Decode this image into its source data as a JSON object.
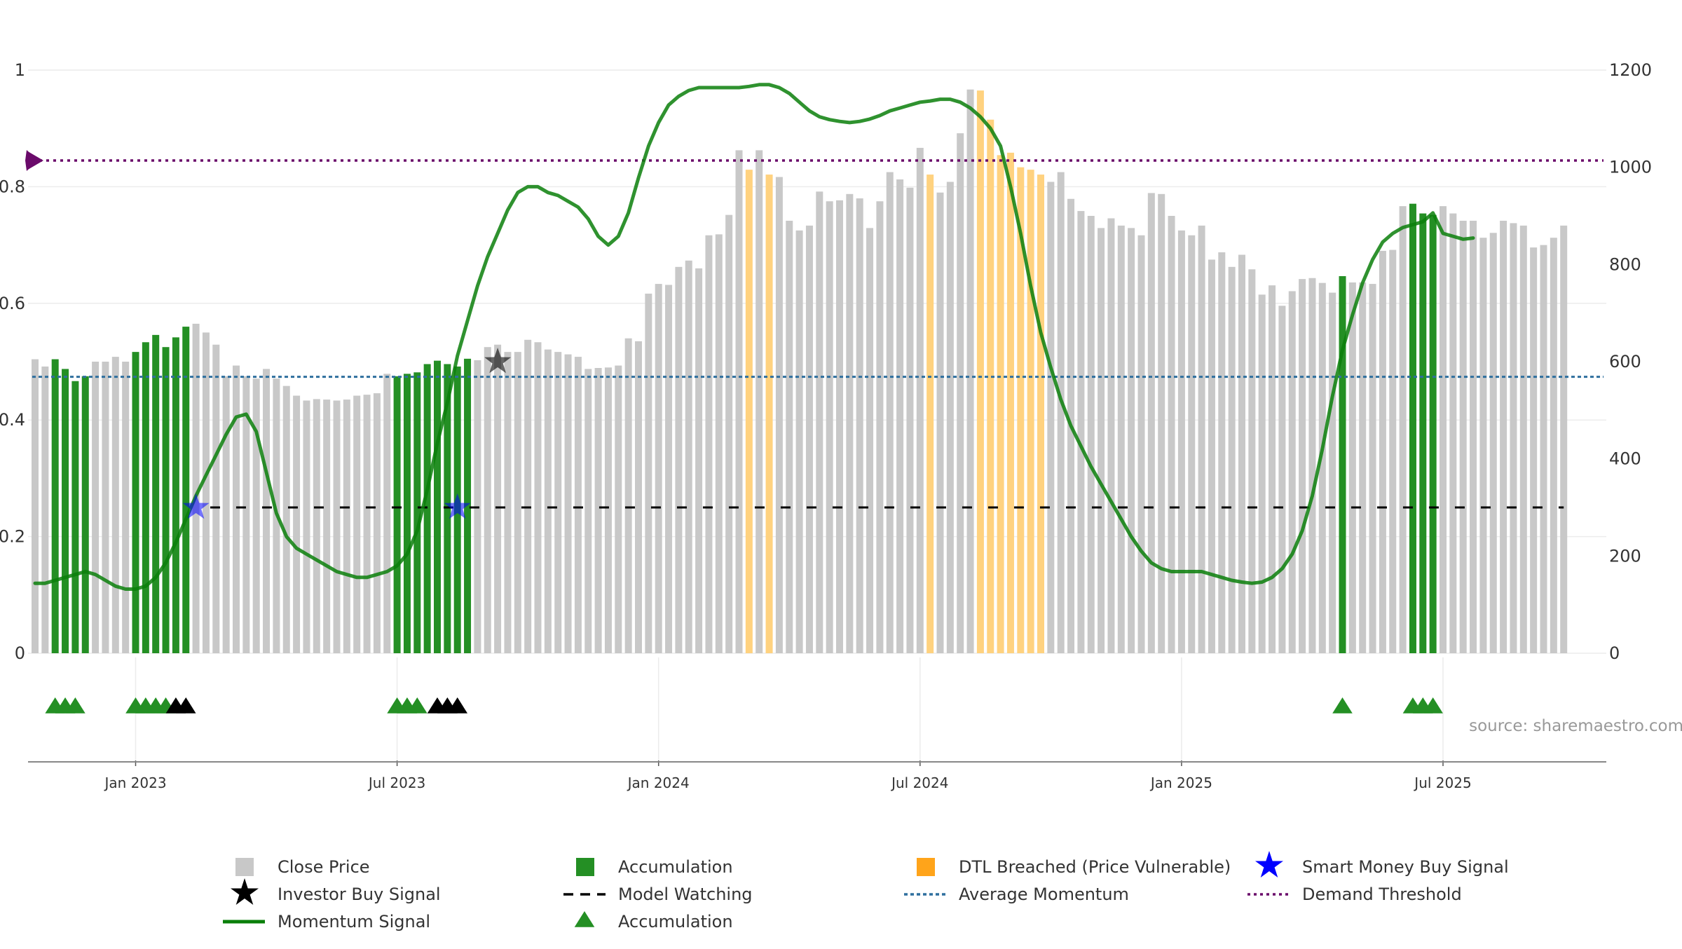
{
  "chart_data": {
    "type": "bar",
    "title": "",
    "source": "source: sharemaestro.com",
    "left_axis": {
      "ticks": [
        "0",
        "0.2",
        "0.4",
        "0.6",
        "0.8",
        "1"
      ],
      "range": [
        0,
        1
      ]
    },
    "right_axis": {
      "ticks": [
        "0",
        "200",
        "400",
        "600",
        "800",
        "1000",
        "1200"
      ],
      "range": [
        0,
        1200
      ]
    },
    "x_axis": {
      "labels": [
        "Jan 2023",
        "Jul 2023",
        "Jan 2024",
        "Jul 2024",
        "Jan 2025",
        "Jul 2025"
      ],
      "label_weeks": [
        10,
        36,
        62,
        88,
        114,
        140
      ]
    },
    "colors": {
      "close_price": "#c8c8c8",
      "accumulation": "#248f24",
      "dtl": "#ffd27f",
      "momentum": "#0a7f0a",
      "demand_threshold": "#6a0a6a",
      "average_momentum": "#2e6f9e",
      "model_watching": "#000000",
      "smart_money": "#0000ff",
      "investor_buy": "#000000"
    },
    "close_prices": [
      605,
      590,
      605,
      585,
      560,
      570,
      600,
      600,
      610,
      600,
      620,
      640,
      655,
      630,
      650,
      672,
      678,
      660,
      635,
      570,
      592,
      570,
      565,
      585,
      565,
      550,
      530,
      520,
      523,
      522,
      520,
      522,
      530,
      532,
      535,
      575,
      570,
      575,
      578,
      595,
      602,
      595,
      590,
      606,
      603,
      630,
      635,
      620,
      620,
      645,
      640,
      625,
      620,
      615,
      610,
      585,
      587,
      588,
      592,
      648,
      642,
      740,
      760,
      758,
      795,
      808,
      792,
      860,
      862,
      902,
      1035,
      995,
      1035,
      985,
      980,
      890,
      870,
      880,
      950,
      930,
      932,
      945,
      936,
      875,
      930,
      990,
      975,
      958,
      1040,
      985,
      948,
      970,
      1070,
      1160,
      1158,
      1098,
      1025,
      1030,
      1000,
      995,
      985,
      970,
      990,
      935,
      910,
      900,
      875,
      895,
      880,
      875,
      860,
      947,
      945,
      900,
      870,
      860,
      880,
      810,
      825,
      795,
      820,
      790,
      738,
      757,
      715,
      745,
      770,
      772,
      762,
      742,
      776,
      763,
      763,
      760,
      828,
      830,
      920,
      925,
      905,
      902,
      920,
      905,
      890,
      890,
      855,
      865,
      890,
      885,
      880,
      835,
      840,
      855,
      880
    ],
    "accumulation_weeks": [
      2,
      3,
      4,
      5,
      10,
      11,
      12,
      13,
      14,
      15,
      36,
      37,
      38,
      39,
      40,
      41,
      42,
      43,
      130,
      137,
      138,
      139
    ],
    "dtl_weeks": [
      71,
      73,
      89,
      94,
      95,
      96,
      97,
      98,
      99,
      100
    ],
    "momentum_signal": [
      0.12,
      0.12,
      0.125,
      0.13,
      0.135,
      0.14,
      0.135,
      0.125,
      0.115,
      0.11,
      0.11,
      0.115,
      0.13,
      0.155,
      0.19,
      0.23,
      0.27,
      0.305,
      0.34,
      0.375,
      0.405,
      0.41,
      0.38,
      0.31,
      0.24,
      0.2,
      0.18,
      0.17,
      0.16,
      0.15,
      0.14,
      0.135,
      0.13,
      0.13,
      0.135,
      0.14,
      0.15,
      0.17,
      0.21,
      0.28,
      0.36,
      0.43,
      0.51,
      0.57,
      0.63,
      0.68,
      0.72,
      0.76,
      0.79,
      0.8,
      0.8,
      0.79,
      0.785,
      0.775,
      0.765,
      0.745,
      0.715,
      0.7,
      0.715,
      0.755,
      0.815,
      0.87,
      0.91,
      0.94,
      0.955,
      0.965,
      0.97,
      0.97,
      0.97,
      0.97,
      0.97,
      0.972,
      0.975,
      0.975,
      0.97,
      0.96,
      0.945,
      0.93,
      0.92,
      0.915,
      0.912,
      0.91,
      0.912,
      0.916,
      0.922,
      0.93,
      0.935,
      0.94,
      0.945,
      0.947,
      0.95,
      0.95,
      0.945,
      0.935,
      0.92,
      0.9,
      0.87,
      0.8,
      0.72,
      0.63,
      0.55,
      0.49,
      0.435,
      0.39,
      0.355,
      0.32,
      0.29,
      0.26,
      0.23,
      0.2,
      0.175,
      0.155,
      0.145,
      0.14,
      0.14,
      0.14,
      0.14,
      0.135,
      0.13,
      0.125,
      0.122,
      0.12,
      0.122,
      0.13,
      0.145,
      0.17,
      0.21,
      0.27,
      0.35,
      0.44,
      0.52,
      0.58,
      0.635,
      0.675,
      0.705,
      0.72,
      0.73,
      0.735,
      0.74,
      0.755,
      0.72,
      0.715,
      0.71,
      0.712
    ],
    "demand_threshold": 0.845,
    "average_momentum": 0.474,
    "model_watching": {
      "value": 0.25,
      "start_week": 17
    },
    "smart_money_buy_signals": [
      {
        "week": 16,
        "value": 0.25
      },
      {
        "week": 42,
        "value": 0.25
      }
    ],
    "investor_buy_signals": [
      {
        "week": 46,
        "value": 0.5
      }
    ],
    "accumulation_triangles": [
      2,
      3,
      4,
      10,
      11,
      12,
      13,
      36,
      37,
      38,
      130,
      137,
      138,
      139
    ],
    "investor_triangles": [
      14,
      15,
      40,
      41,
      42
    ]
  },
  "legend": {
    "close_price": "Close Price",
    "accumulation": "Accumulation",
    "dtl": "DTL Breached (Price Vulnerable)",
    "smart_money": "Smart Money Buy Signal",
    "investor_buy": "Investor Buy Signal",
    "model_watching": "Model Watching",
    "average_momentum": "Average Momentum",
    "demand_threshold": "Demand Threshold",
    "momentum": "Momentum Signal",
    "accumulation_triangle": "Accumulation"
  }
}
